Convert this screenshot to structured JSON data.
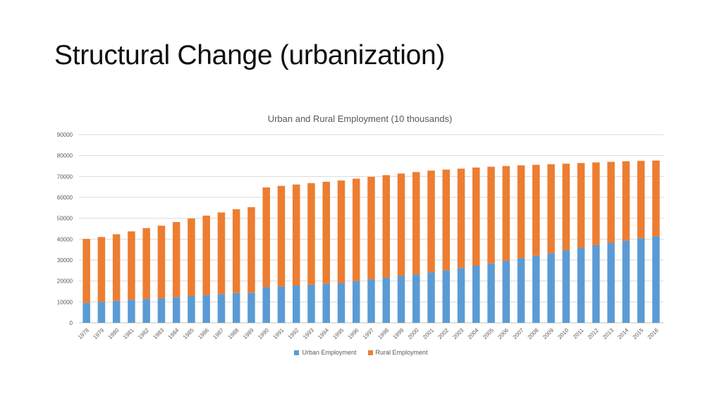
{
  "slide": {
    "title": "Structural Change (urbanization)"
  },
  "colors": {
    "gridline": "#D9D9D9",
    "axis_line": "#BFBFBF",
    "axis_text": "#595959",
    "chart_title_text": "#595959",
    "slide_title_text": "#101010"
  },
  "chart_data": {
    "type": "bar",
    "stacked": true,
    "title": "Urban and Rural Employment (10 thousands)",
    "categories": [
      "1978",
      "1979",
      "1980",
      "1981",
      "1982",
      "1983",
      "1984",
      "1985",
      "1986",
      "1987",
      "1988",
      "1989",
      "1990",
      "1991",
      "1992",
      "1993",
      "1994",
      "1995",
      "1996",
      "1997",
      "1998",
      "1999",
      "2000",
      "2001",
      "2002",
      "2003",
      "2004",
      "2005",
      "2006",
      "2007",
      "2008",
      "2009",
      "2010",
      "2011",
      "2012",
      "2013",
      "2014",
      "2015",
      "2016"
    ],
    "series": [
      {
        "key": "urban",
        "name": "Urban Employment",
        "color": "#5B9BD5",
        "values": [
          9514,
          9999,
          10525,
          11053,
          11428,
          11746,
          12229,
          12808,
          13293,
          13783,
          14267,
          14390,
          17041,
          17465,
          17861,
          18262,
          18653,
          19040,
          19922,
          20781,
          21616,
          22412,
          23151,
          24123,
          25159,
          26230,
          27293,
          28389,
          29630,
          30953,
          32103,
          33322,
          34687,
          35914,
          37102,
          38240,
          39310,
          40410,
          41428
        ]
      },
      {
        "key": "rural",
        "name": "Rural Employment",
        "color": "#ED7D31",
        "values": [
          30638,
          31025,
          31836,
          32672,
          33867,
          34690,
          35968,
          37065,
          37989,
          39000,
          40067,
          40939,
          47708,
          48026,
          48291,
          48546,
          48802,
          49025,
          49028,
          49039,
          49021,
          48982,
          48934,
          48674,
          48121,
          47506,
          46971,
          46258,
          45348,
          44368,
          43461,
          42506,
          41418,
          40506,
          39602,
          38737,
          37943,
          37041,
          36175
        ]
      }
    ],
    "ylim": [
      0,
      90000
    ],
    "ytick_step": 10000,
    "grid": true,
    "legend_position": "bottom"
  }
}
